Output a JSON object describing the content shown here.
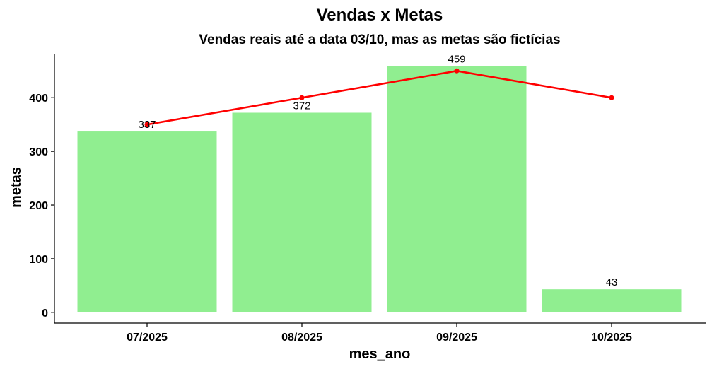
{
  "chart_data": {
    "type": "bar",
    "title": "Vendas x Metas",
    "subtitle": "Vendas reais até a data 03/10, mas as metas são fictícias",
    "xlabel": "mes_ano",
    "ylabel": "metas",
    "categories": [
      "07/2025",
      "08/2025",
      "09/2025",
      "10/2025"
    ],
    "series": [
      {
        "type": "bar",
        "values": [
          337,
          372,
          459,
          43
        ],
        "data_labels": [
          "337",
          "372",
          "459",
          "43"
        ]
      },
      {
        "type": "line",
        "values": [
          350,
          400,
          450,
          400
        ]
      }
    ],
    "ylim": [
      -20,
      482
    ],
    "yticks": [
      0,
      100,
      200,
      300,
      400
    ],
    "ytick_labels": [
      "0",
      "100",
      "200",
      "300",
      "400"
    ],
    "grid": false,
    "colors": {
      "bar": "#90EE90",
      "line": "#FF0000",
      "text": "#000000",
      "axis": "#000000"
    }
  }
}
